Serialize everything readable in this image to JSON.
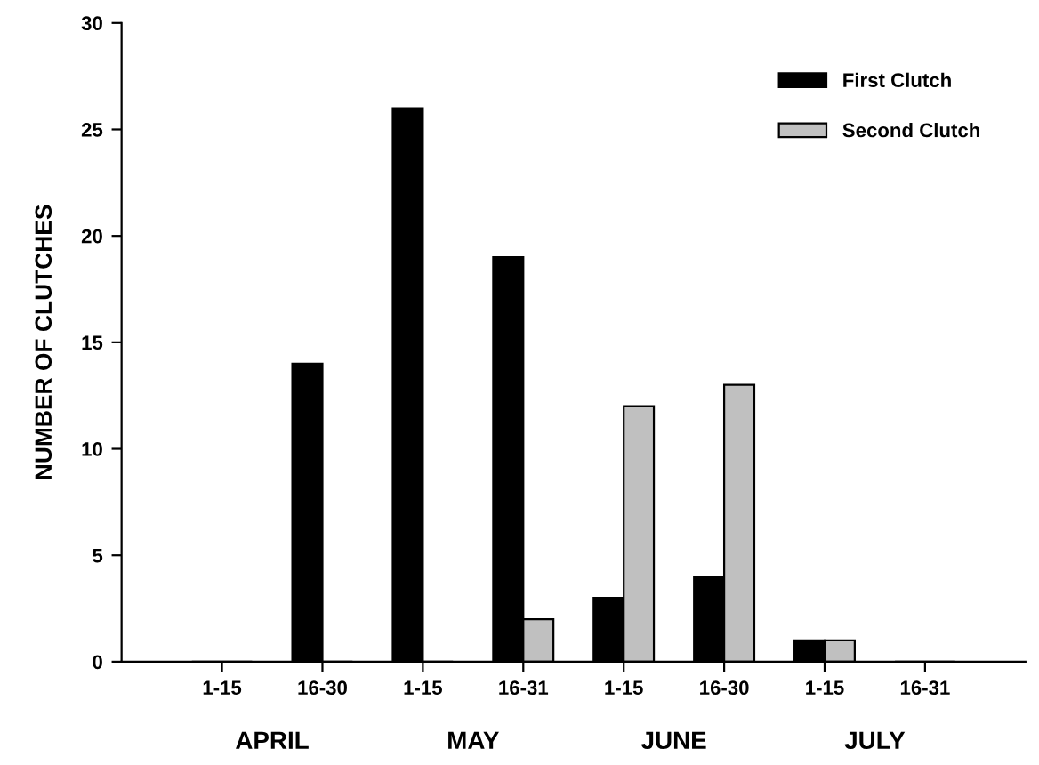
{
  "chart_data": {
    "type": "bar",
    "ylabel": "NUMBER OF CLUTCHES",
    "categories": [
      "1-15",
      "16-30",
      "1-15",
      "16-31",
      "1-15",
      "16-30",
      "1-15",
      "16-31"
    ],
    "series": [
      {
        "name": "First Clutch",
        "color": "#000000",
        "values": [
          0,
          14,
          26,
          19,
          3,
          4,
          1,
          0
        ]
      },
      {
        "name": "Second Clutch",
        "color": "#c0c0c0",
        "values": [
          0,
          0,
          0,
          2,
          12,
          13,
          1,
          0
        ]
      }
    ],
    "annotations": [
      "APRIL",
      "MAY",
      "JUNE",
      "JULY"
    ],
    "ylim": [
      0,
      30
    ],
    "yticks": [
      0,
      5,
      10,
      15,
      20,
      25,
      30
    ],
    "grid": false,
    "legend": "top right"
  }
}
